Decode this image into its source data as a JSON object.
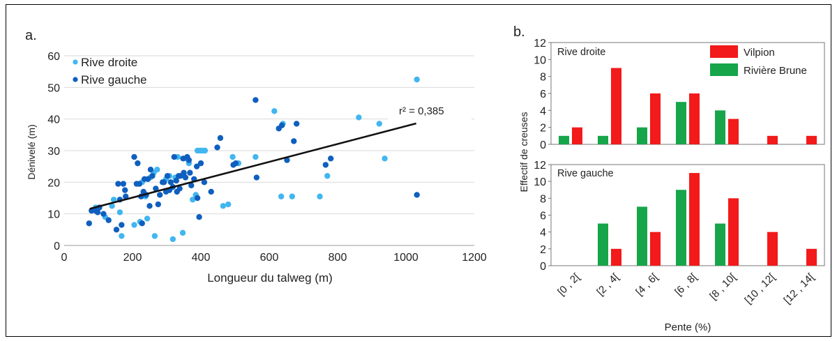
{
  "chart_data": [
    {
      "panel_label": "a.",
      "type": "scatter",
      "xlabel": "Longueur du talweg (m)",
      "ylabel": "Dénivelé (m)",
      "xlim": [
        0,
        1200
      ],
      "ylim": [
        0,
        60
      ],
      "x_ticks": [
        "0",
        "200",
        "400",
        "600",
        "800",
        "1000",
        "1200"
      ],
      "y_ticks": [
        "0",
        "10",
        "20",
        "30",
        "40",
        "50",
        "60"
      ],
      "grid": "horizontal",
      "legend_position": "top-left",
      "series": [
        {
          "name": "Rive droite",
          "color": "#41b6f0",
          "points": [
            [
              92,
              12
            ],
            [
              120,
              9
            ],
            [
              140,
              12.5
            ],
            [
              145,
              14.5
            ],
            [
              163,
              10.5
            ],
            [
              168,
              3
            ],
            [
              205,
              6.5
            ],
            [
              222,
              7.5
            ],
            [
              228,
              20
            ],
            [
              238,
              15.5
            ],
            [
              243,
              8.5
            ],
            [
              252,
              21.5
            ],
            [
              262,
              23
            ],
            [
              265,
              3
            ],
            [
              272,
              24
            ],
            [
              298,
              21
            ],
            [
              308,
              22
            ],
            [
              318,
              2
            ],
            [
              325,
              21.5
            ],
            [
              332,
              28
            ],
            [
              347,
              4
            ],
            [
              355,
              27.5
            ],
            [
              365,
              26
            ],
            [
              376,
              14.5
            ],
            [
              385,
              16
            ],
            [
              390,
              30
            ],
            [
              398,
              30
            ],
            [
              405,
              30
            ],
            [
              412,
              30
            ],
            [
              465,
              12.5
            ],
            [
              480,
              13
            ],
            [
              493,
              28
            ],
            [
              510,
              26
            ],
            [
              560,
              28
            ],
            [
              615,
              42.5
            ],
            [
              635,
              15.5
            ],
            [
              640,
              38.5
            ],
            [
              667,
              15.5
            ],
            [
              748,
              15.5
            ],
            [
              770,
              22
            ],
            [
              862,
              40.5
            ],
            [
              922,
              38.5
            ],
            [
              938,
              27.5
            ],
            [
              1032,
              52.5
            ]
          ]
        },
        {
          "name": "Rive gauche",
          "color": "#0f5fbf",
          "points": [
            [
              73,
              7
            ],
            [
              80,
              11
            ],
            [
              92,
              11
            ],
            [
              98,
              10.5
            ],
            [
              103,
              12
            ],
            [
              115,
              10
            ],
            [
              130,
              8
            ],
            [
              153,
              5
            ],
            [
              158,
              19.5
            ],
            [
              163,
              14.5
            ],
            [
              168,
              6.5
            ],
            [
              173,
              19.5
            ],
            [
              178,
              17.5
            ],
            [
              180,
              15.5
            ],
            [
              205,
              28
            ],
            [
              212,
              19.5
            ],
            [
              215,
              26
            ],
            [
              220,
              19.5
            ],
            [
              225,
              15.5
            ],
            [
              228,
              7
            ],
            [
              232,
              17
            ],
            [
              235,
              21
            ],
            [
              240,
              16
            ],
            [
              245,
              21
            ],
            [
              250,
              12.5
            ],
            [
              253,
              24
            ],
            [
              258,
              22
            ],
            [
              268,
              18
            ],
            [
              275,
              13
            ],
            [
              280,
              16
            ],
            [
              288,
              20
            ],
            [
              292,
              20
            ],
            [
              298,
              17
            ],
            [
              302,
              22
            ],
            [
              308,
              17.5
            ],
            [
              312,
              20
            ],
            [
              318,
              18.5
            ],
            [
              322,
              28
            ],
            [
              328,
              20.5
            ],
            [
              330,
              17
            ],
            [
              335,
              22
            ],
            [
              338,
              18
            ],
            [
              340,
              22
            ],
            [
              348,
              27.5
            ],
            [
              350,
              23
            ],
            [
              355,
              21.5
            ],
            [
              360,
              28
            ],
            [
              365,
              27
            ],
            [
              368,
              23
            ],
            [
              372,
              19
            ],
            [
              380,
              21
            ],
            [
              388,
              25
            ],
            [
              390,
              15
            ],
            [
              395,
              9
            ],
            [
              400,
              26
            ],
            [
              410,
              20
            ],
            [
              430,
              17
            ],
            [
              448,
              31
            ],
            [
              457,
              34
            ],
            [
              495,
              25.5
            ],
            [
              502,
              26
            ],
            [
              560,
              46
            ],
            [
              563,
              21.5
            ],
            [
              628,
              37
            ],
            [
              637,
              38
            ],
            [
              652,
              27
            ],
            [
              672,
              33
            ],
            [
              680,
              38.5
            ],
            [
              765,
              25.5
            ],
            [
              780,
              27.5
            ],
            [
              1032,
              16
            ]
          ]
        }
      ],
      "trendline": {
        "x": [
          75,
          1030
        ],
        "y": [
          11.6,
          38.6
        ],
        "annotation": "r² = 0,385"
      }
    },
    {
      "panel_label": "b.",
      "type": "bar",
      "xlabel": "Pente (%)",
      "ylabel": "Effectif de creuses",
      "ylim": [
        0,
        12
      ],
      "y_ticks": [
        "0",
        "2",
        "4",
        "6",
        "8",
        "10",
        "12"
      ],
      "categories": [
        "[0 , 2[",
        "[2 , 4[",
        "[4 , 6[",
        "[6 , 8[",
        "[8 , 10[",
        "[10 , 12[",
        "[12 , 14["
      ],
      "legend_position": "top-right",
      "series_colors": {
        "Vilpion": "#f21a1a",
        "Rivière Brune": "#17a54a"
      },
      "panels": [
        {
          "title": "Rive droite",
          "series": [
            {
              "name": "Rivière Brune",
              "values": [
                1,
                1,
                2,
                5,
                4,
                0,
                0
              ]
            },
            {
              "name": "Vilpion",
              "values": [
                2,
                9,
                6,
                6,
                3,
                1,
                1
              ]
            }
          ]
        },
        {
          "title": "Rive gauche",
          "series": [
            {
              "name": "Rivière Brune",
              "values": [
                0,
                5,
                7,
                9,
                5,
                0,
                0
              ]
            },
            {
              "name": "Vilpion",
              "values": [
                0,
                2,
                4,
                11,
                8,
                4,
                2
              ]
            }
          ]
        }
      ]
    }
  ]
}
